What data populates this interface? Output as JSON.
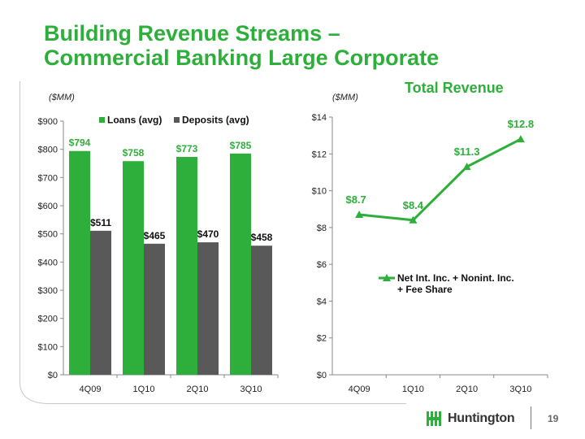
{
  "slide": {
    "title_line1": "Building Revenue Streams –",
    "title_line2": "Commercial Banking Large Corporate",
    "subtitle": "Total Revenue",
    "page_number": "19",
    "logo_text": "Huntington"
  },
  "colors": {
    "green": "#2eae3b",
    "gray": "#595959",
    "axis": "#888888"
  },
  "chart_data": [
    {
      "type": "bar",
      "unit_label": "($MM)",
      "categories": [
        "4Q09",
        "1Q10",
        "2Q10",
        "3Q10"
      ],
      "series": [
        {
          "name": "Loans (avg)",
          "values": [
            794,
            758,
            773,
            785
          ],
          "labels": [
            "$794",
            "$758",
            "$773",
            "$785"
          ]
        },
        {
          "name": "Deposits (avg)",
          "values": [
            511,
            465,
            470,
            458
          ],
          "labels": [
            "$511",
            "$465",
            "$470",
            "$458"
          ]
        }
      ],
      "ylim": [
        0,
        900
      ],
      "yticks": [
        0,
        100,
        200,
        300,
        400,
        500,
        600,
        700,
        800,
        900
      ],
      "ytick_labels": [
        "$0",
        "$100",
        "$200",
        "$300",
        "$400",
        "$500",
        "$600",
        "$700",
        "$800",
        "$900"
      ],
      "legend": "top"
    },
    {
      "type": "line",
      "unit_label": "($MM)",
      "categories": [
        "4Q09",
        "1Q10",
        "2Q10",
        "3Q10"
      ],
      "series": [
        {
          "name_line1": "Net Int. Inc. + Nonint. Inc.",
          "name_line2": "+ Fee Share",
          "values": [
            8.7,
            8.4,
            11.3,
            12.8
          ],
          "labels": [
            "$8.7",
            "$8.4",
            "$11.3",
            "$12.8"
          ]
        }
      ],
      "ylim": [
        0,
        14
      ],
      "yticks": [
        0,
        2,
        4,
        6,
        8,
        10,
        12,
        14
      ],
      "ytick_labels": [
        "$0",
        "$2",
        "$4",
        "$6",
        "$8",
        "$10",
        "$12",
        "$14"
      ],
      "legend": "center-right"
    }
  ]
}
